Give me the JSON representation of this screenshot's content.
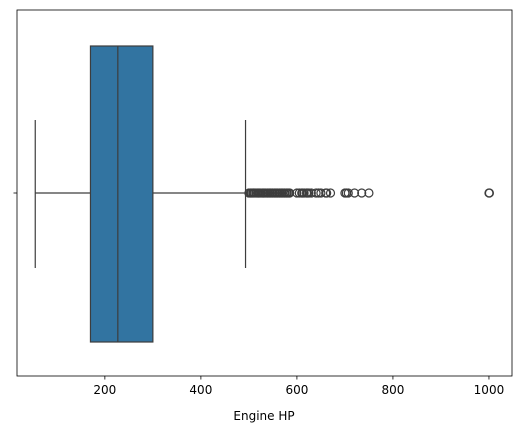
{
  "chart_data": {
    "type": "box",
    "orientation": "horizontal",
    "xlabel": "Engine HP",
    "xlim": [
      17,
      1048
    ],
    "xticks": [
      200,
      400,
      600,
      800,
      1000
    ],
    "ytick_labels": [
      ""
    ],
    "grid": false,
    "colors": {
      "box_fill": "#3274a1",
      "line": "#3d3d3d"
    },
    "box": {
      "whisker_low": 55,
      "q1": 170,
      "median": 227,
      "q3": 300,
      "whisker_high": 493
    },
    "outliers": [
      500,
      503,
      505,
      508,
      510,
      512,
      515,
      518,
      520,
      522,
      525,
      528,
      530,
      532,
      535,
      538,
      540,
      543,
      545,
      548,
      550,
      553,
      555,
      558,
      560,
      563,
      565,
      568,
      570,
      573,
      575,
      578,
      580,
      583,
      585,
      600,
      605,
      610,
      612,
      615,
      620,
      622,
      625,
      630,
      640,
      645,
      650,
      660,
      662,
      670,
      700,
      703,
      707,
      720,
      735,
      750,
      1000,
      1001
    ]
  }
}
